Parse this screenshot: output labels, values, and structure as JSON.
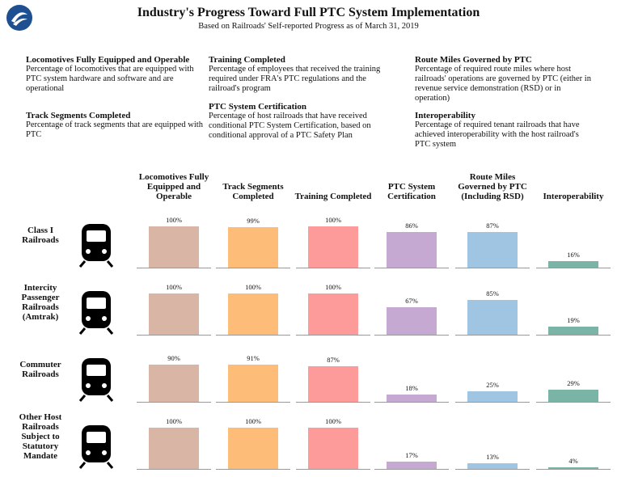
{
  "chart_data": {
    "type": "bar-grid",
    "title": "Industry's Progress Toward Full PTC System Implementation",
    "subtitle": "Based on Railroads' Self-reported Progress as of March 31, 2019",
    "categories": [
      "Class I Railroads",
      "Intercity Passenger Railroads (Amtrak)",
      "Commuter Railroads",
      "Other Host Railroads Subject to Statutory Mandate"
    ],
    "ylim": [
      0,
      100
    ],
    "series": [
      {
        "name": "Locomotives Fully Equipped and Operable",
        "color": "#d8b5a4",
        "values": [
          100,
          100,
          90,
          100
        ],
        "value_labels": [
          "100%",
          "100%",
          "90%",
          "100%"
        ]
      },
      {
        "name": "Track Segments Completed",
        "color": "#fdbd78",
        "values": [
          99,
          100,
          91,
          100
        ],
        "value_labels": [
          "99%",
          "100%",
          "91%",
          "100%"
        ]
      },
      {
        "name": "Training Completed",
        "color": "#fd9a9a",
        "values": [
          100,
          100,
          87,
          100
        ],
        "value_labels": [
          "100%",
          "100%",
          "87%",
          "100%"
        ]
      },
      {
        "name": "PTC System Certification",
        "color": "#c5a9d2",
        "values": [
          86,
          67,
          18,
          17
        ],
        "value_labels": [
          "86%",
          "67%",
          "18%",
          "17%"
        ]
      },
      {
        "name": "Route Miles Governed by PTC (Including RSD)",
        "color": "#9fc5e3",
        "values": [
          87,
          85,
          25,
          13
        ],
        "value_labels": [
          "87%",
          "85%",
          "25%",
          "13%"
        ]
      },
      {
        "name": "Interoperability",
        "color": "#79b4a6",
        "values": [
          16,
          19,
          29,
          4
        ],
        "value_labels": [
          "16%",
          "19%",
          "29%",
          "4%"
        ]
      }
    ]
  },
  "definitions": [
    {
      "heading": "Locomotives Fully Equipped and Operable",
      "text": "Percentage of locomotives that are equipped with PTC system hardware and software and are operational"
    },
    {
      "heading": "Track Segments Completed",
      "text": "Percentage of track segments that are equipped with PTC"
    },
    {
      "heading": "Training Completed",
      "text": "Percentage of employees that received the training required under FRA's PTC regulations and the railroad's program"
    },
    {
      "heading": "PTC System Certification",
      "text": "Percentage of host railroads that have received conditional PTC System Certification, based on conditional approval of a PTC Safety Plan"
    },
    {
      "heading": "Route Miles Governed by PTC",
      "text": "Percentage of required route miles where host railroads' operations are governed by PTC (either in revenue service demonstration (RSD) or in operation)"
    },
    {
      "heading": "Interoperability",
      "text": "Percentage of required tenant railroads that have achieved interoperability with the host railroad's PTC system"
    }
  ]
}
